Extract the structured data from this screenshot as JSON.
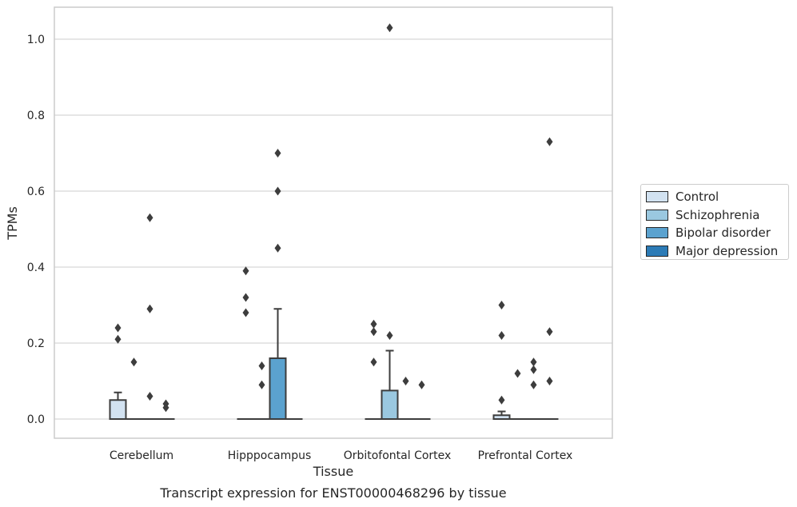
{
  "chart_data": {
    "type": "box",
    "title": "Transcript expression for ENST00000468296 by tissue",
    "xlabel": "Tissue",
    "ylabel": "TPMs",
    "ylim": [
      -0.05,
      1.08
    ],
    "yticks": [
      "0.0",
      "0.2",
      "0.4",
      "0.6",
      "0.8",
      "1.0"
    ],
    "ytick_values": [
      0.0,
      0.2,
      0.4,
      0.6,
      0.8,
      1.0
    ],
    "grid": true,
    "legend_position": "right",
    "categories": [
      "Cerebellum",
      "Hipppocampus",
      "Orbitofontal Cortex",
      "Prefrontal Cortex"
    ],
    "series": [
      {
        "name": "Control",
        "color": "#d2e2f1",
        "boxes": [
          {
            "q1": 0.0,
            "median": 0.0,
            "q3": 0.05,
            "whisker_low": 0.0,
            "whisker_high": 0.07,
            "outliers": [
              0.24,
              0.21
            ]
          },
          {
            "q1": 0.0,
            "median": 0.0,
            "q3": 0.0,
            "whisker_low": 0.0,
            "whisker_high": 0.0,
            "outliers": [
              0.39,
              0.32,
              0.28
            ]
          },
          {
            "q1": 0.0,
            "median": 0.0,
            "q3": 0.0,
            "whisker_low": 0.0,
            "whisker_high": 0.0,
            "outliers": [
              0.25,
              0.23,
              0.15
            ]
          },
          {
            "q1": 0.0,
            "median": 0.0,
            "q3": 0.01,
            "whisker_low": 0.0,
            "whisker_high": 0.02,
            "outliers": [
              0.3,
              0.22,
              0.05
            ]
          }
        ]
      },
      {
        "name": "Schizophrenia",
        "color": "#9ac8e0",
        "boxes": [
          {
            "q1": 0.0,
            "median": 0.0,
            "q3": 0.0,
            "whisker_low": 0.0,
            "whisker_high": 0.0,
            "outliers": [
              0.15
            ]
          },
          {
            "q1": 0.0,
            "median": 0.0,
            "q3": 0.0,
            "whisker_low": 0.0,
            "whisker_high": 0.0,
            "outliers": [
              0.14,
              0.09
            ]
          },
          {
            "q1": 0.0,
            "median": 0.0,
            "q3": 0.075,
            "whisker_low": 0.0,
            "whisker_high": 0.18,
            "outliers": [
              1.03,
              0.22
            ]
          },
          {
            "q1": 0.0,
            "median": 0.0,
            "q3": 0.0,
            "whisker_low": 0.0,
            "whisker_high": 0.0,
            "outliers": [
              0.12
            ]
          }
        ]
      },
      {
        "name": "Bipolar disorder",
        "color": "#5ba2cf",
        "boxes": [
          {
            "q1": 0.0,
            "median": 0.0,
            "q3": 0.0,
            "whisker_low": 0.0,
            "whisker_high": 0.0,
            "outliers": [
              0.53,
              0.29,
              0.06
            ]
          },
          {
            "q1": 0.0,
            "median": 0.0,
            "q3": 0.16,
            "whisker_low": 0.0,
            "whisker_high": 0.29,
            "outliers": [
              0.7,
              0.6,
              0.45
            ]
          },
          {
            "q1": 0.0,
            "median": 0.0,
            "q3": 0.0,
            "whisker_low": 0.0,
            "whisker_high": 0.0,
            "outliers": [
              0.1
            ]
          },
          {
            "q1": 0.0,
            "median": 0.0,
            "q3": 0.0,
            "whisker_low": 0.0,
            "whisker_high": 0.0,
            "outliers": [
              0.15,
              0.13,
              0.09
            ]
          }
        ]
      },
      {
        "name": "Major depression",
        "color": "#2c7bb6",
        "boxes": [
          {
            "q1": 0.0,
            "median": 0.0,
            "q3": 0.0,
            "whisker_low": 0.0,
            "whisker_high": 0.0,
            "outliers": [
              0.04,
              0.03
            ]
          },
          {
            "q1": 0.0,
            "median": 0.0,
            "q3": 0.0,
            "whisker_low": 0.0,
            "whisker_high": 0.0,
            "outliers": []
          },
          {
            "q1": 0.0,
            "median": 0.0,
            "q3": 0.0,
            "whisker_low": 0.0,
            "whisker_high": 0.0,
            "outliers": [
              0.09
            ]
          },
          {
            "q1": 0.0,
            "median": 0.0,
            "q3": 0.0,
            "whisker_low": 0.0,
            "whisker_high": 0.0,
            "outliers": [
              0.73,
              0.23,
              0.1
            ]
          }
        ]
      }
    ]
  }
}
